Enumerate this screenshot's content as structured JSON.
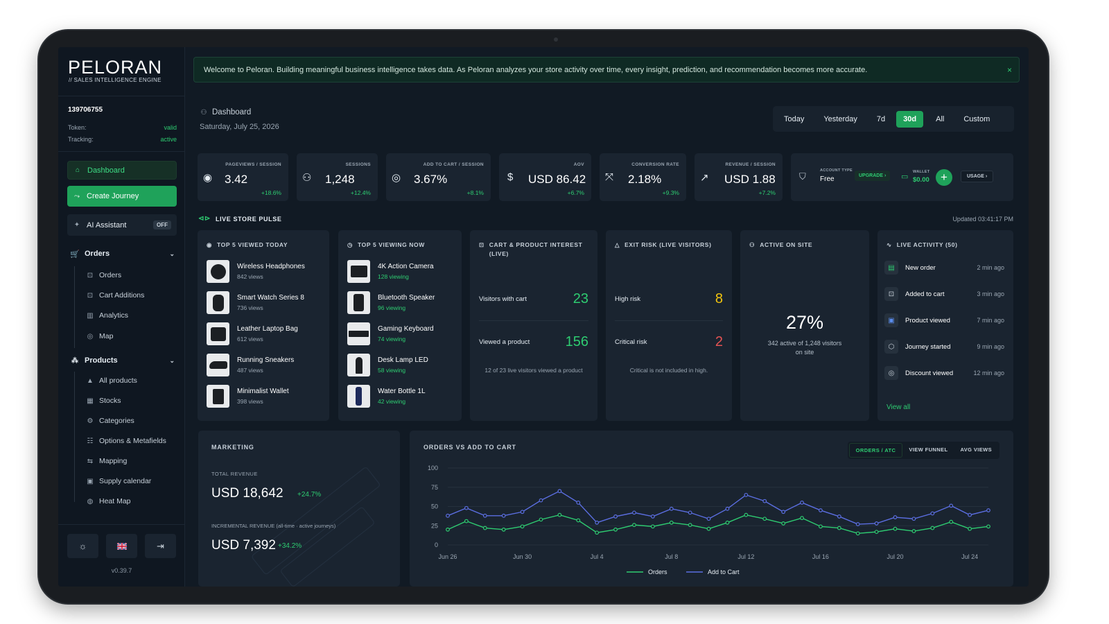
{
  "brand": {
    "name": "PELORAN",
    "tagline": "// SALES INTELLIGENCE ENGINE",
    "version": "v0.39.7"
  },
  "account": {
    "id": "139706755",
    "token_label": "Token:",
    "token_status": "valid",
    "tracking_label": "Tracking:",
    "tracking_status": "active"
  },
  "nav": {
    "dashboard": "Dashboard",
    "create_journey": "Create Journey",
    "ai_assistant": "AI Assistant",
    "ai_state": "OFF",
    "orders_group": "Orders",
    "orders_items": [
      "Orders",
      "Cart Additions",
      "Analytics",
      "Map"
    ],
    "products_group": "Products",
    "products_items": [
      "All products",
      "Stocks",
      "Categories",
      "Options & Metafields",
      "Mapping",
      "Supply calendar",
      "Heat Map"
    ]
  },
  "banner": {
    "text": "Welcome to Peloran. Building meaningful business intelligence takes data. As Peloran analyzes your store activity over time, every insight, prediction, and recommendation becomes more accurate.",
    "close": "×"
  },
  "header": {
    "breadcrumb": "Dashboard",
    "date": "Saturday, July 25, 2026"
  },
  "ranges": [
    "Today",
    "Yesterday",
    "7d",
    "30d",
    "All",
    "Custom"
  ],
  "active_range": "30d",
  "kpis": [
    {
      "label": "PAGEVIEWS / SESSION",
      "value": "3.42",
      "delta": "+18.6%",
      "icon": "eye-icon"
    },
    {
      "label": "SESSIONS",
      "value": "1,248",
      "delta": "+12.4%",
      "icon": "users-icon"
    },
    {
      "label": "ADD TO CART / SESSION",
      "value": "3.67%",
      "delta": "+8.1%",
      "icon": "cart-icon"
    },
    {
      "label": "AOV",
      "value": "USD 86.42",
      "delta": "+6.7%",
      "icon": "dollar-icon"
    },
    {
      "label": "CONVERSION RATE",
      "value": "2.18%",
      "delta": "+9.3%",
      "icon": "click-icon"
    },
    {
      "label": "REVENUE / SESSION",
      "value": "USD 1.88",
      "delta": "+7.2%",
      "icon": "trend-up-icon"
    }
  ],
  "account_card": {
    "type_label": "ACCOUNT TYPE",
    "type": "Free",
    "upgrade": "UPGRADE ›",
    "wallet_label": "WALLET",
    "wallet": "$0.00",
    "usage": "USAGE ›"
  },
  "pulse": {
    "title": "LIVE STORE PULSE",
    "updated": "Updated 03:41:17 PM"
  },
  "top_viewed": {
    "title": "TOP 5 VIEWED TODAY",
    "items": [
      {
        "name": "Wireless Headphones",
        "meta": "842 views"
      },
      {
        "name": "Smart Watch Series 8",
        "meta": "736 views"
      },
      {
        "name": "Leather Laptop Bag",
        "meta": "612 views"
      },
      {
        "name": "Running Sneakers",
        "meta": "487 views"
      },
      {
        "name": "Minimalist Wallet",
        "meta": "398 views"
      }
    ]
  },
  "top_viewing": {
    "title": "TOP 5 VIEWING NOW",
    "items": [
      {
        "name": "4K Action Camera",
        "meta": "128 viewing"
      },
      {
        "name": "Bluetooth Speaker",
        "meta": "96 viewing"
      },
      {
        "name": "Gaming Keyboard",
        "meta": "74 viewing"
      },
      {
        "name": "Desk Lamp LED",
        "meta": "58 viewing"
      },
      {
        "name": "Water Bottle 1L",
        "meta": "42 viewing"
      }
    ]
  },
  "cart_interest": {
    "title_1": "CART & PRODUCT INTEREST",
    "title_2": "(LIVE)",
    "visitors_label": "Visitors with cart",
    "visitors_value": "23",
    "viewed_label": "Viewed a product",
    "viewed_value": "156",
    "note": "12 of 23 live visitors viewed a product"
  },
  "exit_risk": {
    "title": "EXIT RISK (LIVE VISITORS)",
    "high_label": "High risk",
    "high_value": "8",
    "critical_label": "Critical risk",
    "critical_value": "2",
    "note": "Critical is not included in high."
  },
  "active_site": {
    "title": "ACTIVE ON SITE",
    "value": "27%",
    "note_1": "342 active of 1,248 visitors",
    "note_2": "on site"
  },
  "live_activity": {
    "title": "LIVE ACTIVITY (50)",
    "items": [
      {
        "label": "New order",
        "time": "2 min ago"
      },
      {
        "label": "Added to cart",
        "time": "3 min ago"
      },
      {
        "label": "Product viewed",
        "time": "7 min ago"
      },
      {
        "label": "Journey started",
        "time": "9 min ago"
      },
      {
        "label": "Discount viewed",
        "time": "12 min ago"
      }
    ],
    "view_all": "View all"
  },
  "marketing": {
    "title": "MARKETING",
    "total_label": "TOTAL REVENUE",
    "total_value": "USD 18,642",
    "total_delta": "+24.7%",
    "incr_label": "INCREMENTAL REVENUE (all-time · active journeys)",
    "incr_value": "USD 7,392",
    "incr_delta": "+34.2%"
  },
  "chart_tabs": [
    "ORDERS / ATC",
    "VIEW FUNNEL",
    "AVG VIEWS"
  ],
  "chart_data": {
    "type": "line",
    "title": "ORDERS VS ADD TO CART",
    "ylim": [
      0,
      100
    ],
    "yticks": [
      0,
      25,
      50,
      75,
      100
    ],
    "xtick_labels": [
      "Jun 26",
      "Jun 30",
      "Jul 4",
      "Jul 8",
      "Jul 12",
      "Jul 16",
      "Jul 20",
      "Jul 24"
    ],
    "x": [
      "Jun 26",
      "Jun 27",
      "Jun 28",
      "Jun 29",
      "Jun 30",
      "Jul 1",
      "Jul 2",
      "Jul 3",
      "Jul 4",
      "Jul 5",
      "Jul 6",
      "Jul 7",
      "Jul 8",
      "Jul 9",
      "Jul 10",
      "Jul 11",
      "Jul 12",
      "Jul 13",
      "Jul 14",
      "Jul 15",
      "Jul 16",
      "Jul 17",
      "Jul 18",
      "Jul 19",
      "Jul 20",
      "Jul 21",
      "Jul 22",
      "Jul 23",
      "Jul 24",
      "Jul 25"
    ],
    "series": [
      {
        "name": "Orders",
        "color": "#2ecc71",
        "values": [
          20,
          31,
          22,
          20,
          24,
          33,
          39,
          32,
          16,
          20,
          26,
          24,
          29,
          26,
          21,
          29,
          39,
          34,
          28,
          35,
          24,
          22,
          15,
          17,
          21,
          18,
          22,
          30,
          21,
          24
        ]
      },
      {
        "name": "Add to Cart",
        "color": "#5b6ee1",
        "values": [
          38,
          48,
          38,
          38,
          43,
          58,
          70,
          55,
          29,
          37,
          42,
          37,
          47,
          42,
          34,
          47,
          65,
          57,
          43,
          55,
          45,
          37,
          27,
          28,
          36,
          34,
          41,
          51,
          39,
          45
        ]
      }
    ]
  },
  "colors": {
    "accent": "#1fa25a",
    "positive": "#2ecc71",
    "warning": "#f1c40f",
    "danger": "#e55353"
  }
}
